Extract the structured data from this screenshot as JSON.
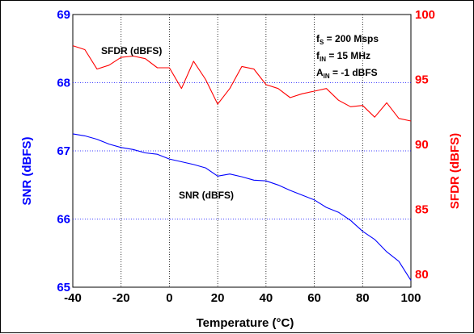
{
  "chart_data": {
    "type": "line",
    "xlabel": "Temperature (°C)",
    "ylabel_left": "SNR (dBFS)",
    "ylabel_right": "SFDR (dBFS)",
    "x_ticks": [
      "-40",
      "-20",
      "0",
      "20",
      "40",
      "60",
      "80",
      "100"
    ],
    "y_left_ticks": [
      "65",
      "66",
      "67",
      "68",
      "69"
    ],
    "y_right_ticks": [
      "80",
      "85",
      "90",
      "95",
      "100"
    ],
    "xlim": [
      -40,
      100
    ],
    "ylim_left": [
      65,
      69
    ],
    "ylim_right": [
      79,
      100
    ],
    "grid": "dotted",
    "colors": {
      "left_axis": "#0000ff",
      "right_axis": "#ff0000",
      "snr": "#0000ff",
      "sfdr": "#ff0000",
      "grid": "#000000"
    },
    "series": [
      {
        "name": "SNR (dBFS)",
        "axis": "left",
        "color": "#0000ff",
        "label": "SNR (dBFS)",
        "x": [
          -40,
          -35,
          -30,
          -25,
          -20,
          -15,
          -10,
          -5,
          0,
          5,
          10,
          15,
          20,
          25,
          30,
          35,
          40,
          45,
          50,
          55,
          60,
          65,
          70,
          75,
          80,
          85,
          90,
          95,
          100
        ],
        "y": [
          67.25,
          67.22,
          67.17,
          67.1,
          67.05,
          67.02,
          66.97,
          66.95,
          66.88,
          66.84,
          66.8,
          66.75,
          66.63,
          66.66,
          66.62,
          66.57,
          66.56,
          66.5,
          66.42,
          66.35,
          66.28,
          66.17,
          66.1,
          65.98,
          65.82,
          65.7,
          65.52,
          65.38,
          65.1
        ]
      },
      {
        "name": "SFDR (dBFS)",
        "axis": "right",
        "color": "#ff0000",
        "label": "SFDR (dBFS)",
        "x": [
          -40,
          -35,
          -30,
          -25,
          -20,
          -15,
          -10,
          -5,
          0,
          5,
          10,
          15,
          20,
          25,
          30,
          35,
          40,
          45,
          50,
          55,
          60,
          65,
          70,
          75,
          80,
          85,
          90,
          95,
          100
        ],
        "y": [
          97.6,
          97.3,
          95.8,
          96.1,
          96.7,
          96.8,
          96.6,
          95.9,
          95.9,
          94.3,
          96.4,
          95.0,
          93.1,
          94.3,
          96.0,
          95.8,
          94.6,
          94.3,
          93.6,
          93.9,
          94.1,
          94.3,
          93.4,
          92.9,
          93.0,
          92.1,
          93.2,
          92.0,
          91.8
        ]
      }
    ],
    "annotations": {
      "fs": {
        "main": "f",
        "sub": "S",
        "rest": " = 200 Msps"
      },
      "fin": {
        "main": "f",
        "sub": "IN",
        "rest": " = 15 MHz"
      },
      "ain": {
        "main": "A",
        "sub": "IN",
        "rest": " = -1 dBFS"
      }
    }
  }
}
